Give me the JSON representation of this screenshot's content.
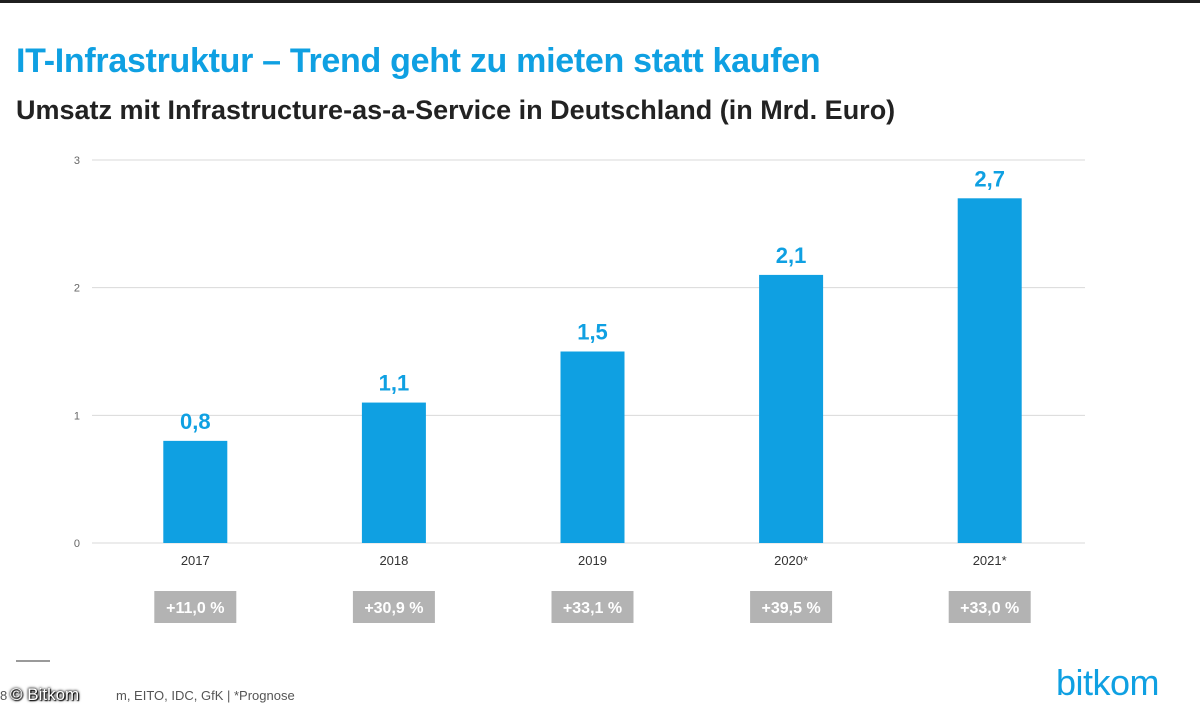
{
  "header": {
    "title": "IT-Infrastruktur – Trend geht zu mieten statt kaufen",
    "subtitle": "Umsatz mit Infrastructure-as-a-Service in Deutschland (in Mrd. Euro)"
  },
  "chart_data": {
    "type": "bar",
    "title": "IT-Infrastruktur – Trend geht zu mieten statt kaufen",
    "subtitle": "Umsatz mit Infrastructure-as-a-Service in Deutschland (in Mrd. Euro)",
    "categories": [
      "2017",
      "2018",
      "2019",
      "2020*",
      "2021*"
    ],
    "values": [
      0.8,
      1.1,
      1.5,
      2.1,
      2.7
    ],
    "value_labels": [
      "0,8",
      "1,1",
      "1,5",
      "2,1",
      "2,7"
    ],
    "growth_labels": [
      "+11,0 %",
      "+30,9 %",
      "+33,1 %",
      "+39,5 %",
      "+33,0 %"
    ],
    "y_ticks": [
      0,
      1,
      2,
      3
    ],
    "y_tick_labels": [
      "0",
      "1",
      "2",
      "3"
    ],
    "ylim": [
      0,
      3
    ],
    "xlabel": "",
    "ylabel": "",
    "grid": true,
    "bar_color": "#0fa0e2",
    "growth_box_color": "#b3b3b3"
  },
  "footer": {
    "page_number": "8",
    "source": "m, EITO, IDC, GfK | *Prognose",
    "watermark": "© Bitkom",
    "logo": "bitkom"
  }
}
